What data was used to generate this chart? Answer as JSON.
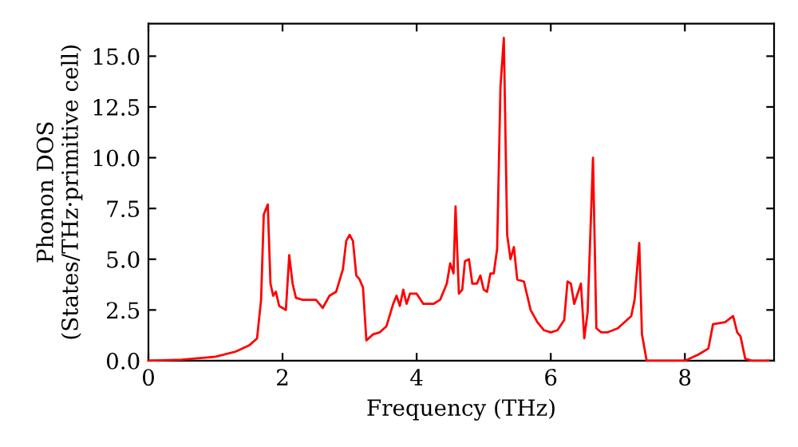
{
  "chart_data": {
    "type": "line",
    "xlabel": "Frequency (THz)",
    "ylabel": "Phonon DOS\n(States/THz·primitive cell)",
    "xlim": [
      0,
      9.33
    ],
    "ylim": [
      0,
      16.6
    ],
    "xticks": [
      0,
      2,
      4,
      6,
      8
    ],
    "yticks": [
      {
        "value": 0,
        "label": "0.0"
      },
      {
        "value": 2.5,
        "label": "2.5"
      },
      {
        "value": 5,
        "label": "5.0"
      },
      {
        "value": 7.5,
        "label": "7.5"
      },
      {
        "value": 10,
        "label": "10.0"
      },
      {
        "value": 12.5,
        "label": "12.5"
      },
      {
        "value": 15,
        "label": "15.0"
      }
    ],
    "grid": false,
    "legend": false,
    "marker": "none",
    "line_style": "solid",
    "x": [
      0,
      0.5,
      1.0,
      1.3,
      1.5,
      1.62,
      1.68,
      1.72,
      1.78,
      1.82,
      1.86,
      1.9,
      1.95,
      2.05,
      2.1,
      2.15,
      2.2,
      2.3,
      2.5,
      2.6,
      2.7,
      2.8,
      2.9,
      2.95,
      3.0,
      3.05,
      3.1,
      3.15,
      3.2,
      3.25,
      3.35,
      3.45,
      3.55,
      3.65,
      3.7,
      3.75,
      3.8,
      3.85,
      3.9,
      4.0,
      4.1,
      4.25,
      4.35,
      4.45,
      4.5,
      4.55,
      4.58,
      4.63,
      4.68,
      4.72,
      4.78,
      4.83,
      4.9,
      4.95,
      5.0,
      5.05,
      5.1,
      5.15,
      5.2,
      5.25,
      5.3,
      5.35,
      5.4,
      5.45,
      5.5,
      5.6,
      5.7,
      5.8,
      5.9,
      6.0,
      6.1,
      6.2,
      6.25,
      6.3,
      6.35,
      6.45,
      6.5,
      6.55,
      6.63,
      6.68,
      6.75,
      6.85,
      7.0,
      7.2,
      7.25,
      7.32,
      7.36,
      7.43,
      8.0,
      8.2,
      8.35,
      8.42,
      8.6,
      8.72,
      8.78,
      8.83,
      8.9,
      9.0,
      9.25
    ],
    "series": [
      {
        "color": "#ff0000",
        "values": [
          0,
          0.05,
          0.2,
          0.45,
          0.75,
          1.1,
          3.0,
          7.2,
          7.7,
          3.8,
          3.2,
          3.4,
          2.7,
          2.5,
          5.2,
          3.8,
          3.1,
          3.0,
          3.0,
          2.6,
          3.2,
          3.4,
          4.5,
          5.9,
          6.2,
          5.9,
          4.2,
          4.0,
          3.6,
          1.0,
          1.3,
          1.4,
          1.7,
          2.8,
          3.2,
          2.7,
          3.5,
          2.8,
          3.3,
          3.3,
          2.8,
          2.8,
          3.0,
          3.8,
          4.8,
          4.3,
          7.6,
          3.3,
          3.5,
          4.9,
          5.0,
          3.8,
          3.8,
          4.2,
          3.5,
          3.4,
          4.3,
          4.3,
          5.5,
          13.5,
          15.9,
          6.2,
          5.0,
          5.6,
          4.0,
          3.9,
          2.5,
          1.9,
          1.5,
          1.4,
          1.5,
          2.0,
          3.9,
          3.8,
          2.8,
          3.8,
          1.1,
          2.4,
          10.0,
          1.6,
          1.4,
          1.4,
          1.6,
          2.2,
          3.0,
          5.8,
          1.3,
          0,
          0,
          0.3,
          0.6,
          1.8,
          1.9,
          2.2,
          1.4,
          1.2,
          0.1,
          0,
          0
        ]
      }
    ]
  }
}
